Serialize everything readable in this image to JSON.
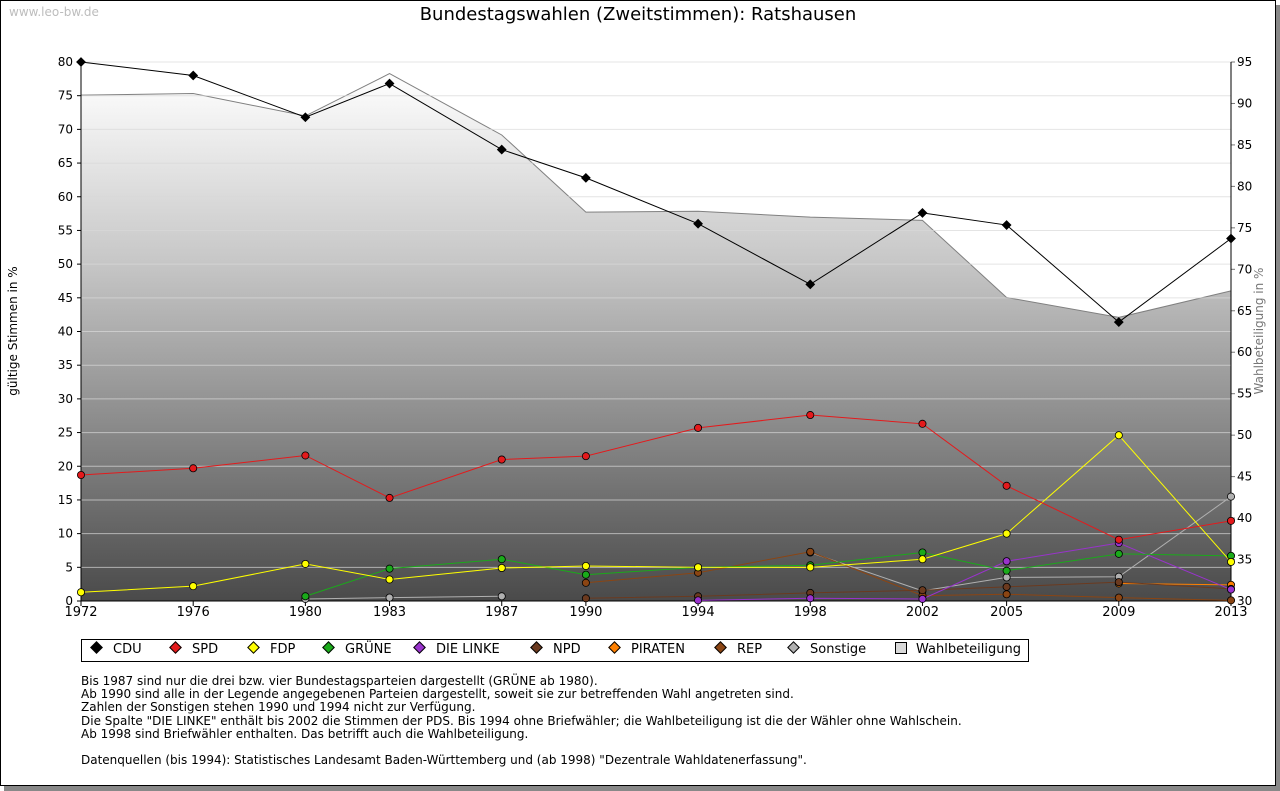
{
  "watermark": "www.leo-bw.de",
  "title": "Bundestagswahlen (Zweitstimmen): Ratshausen",
  "chart_data": {
    "type": "line",
    "title": "Bundestagswahlen (Zweitstimmen): Ratshausen",
    "ylabel": "gültige Stimmen in %",
    "y2label": "Wahlbeteiligung in %",
    "ylim": [
      0,
      80
    ],
    "y2lim": [
      30,
      95
    ],
    "yticks": [
      "0",
      "5",
      "10",
      "15",
      "20",
      "25",
      "30",
      "35",
      "40",
      "45",
      "50",
      "55",
      "60",
      "65",
      "70",
      "75",
      "80"
    ],
    "y2ticks": [
      "30",
      "35",
      "40",
      "45",
      "50",
      "55",
      "60",
      "65",
      "70",
      "75",
      "80",
      "85",
      "90",
      "95"
    ],
    "x": [
      "1972",
      "1976",
      "1980",
      "1983",
      "1987",
      "1990",
      "1994",
      "1998",
      "2002",
      "2005",
      "2009",
      "2013"
    ],
    "grid": true,
    "series": [
      {
        "name": "CDU",
        "color": "#000000",
        "values": [
          80.0,
          78.0,
          71.8,
          76.8,
          67.0,
          62.8,
          56.0,
          47.0,
          57.6,
          55.8,
          41.4,
          53.8
        ]
      },
      {
        "name": "SPD",
        "color": "#e41a1c",
        "values": [
          18.7,
          19.7,
          21.6,
          15.3,
          21.0,
          21.5,
          25.7,
          27.6,
          26.3,
          17.1,
          9.1,
          11.9
        ]
      },
      {
        "name": "FDP",
        "color": "#ffff00",
        "values": [
          1.3,
          2.2,
          5.5,
          3.2,
          4.9,
          5.2,
          5.0,
          5.0,
          6.2,
          10.0,
          24.6,
          5.8
        ]
      },
      {
        "name": "GRÜNE",
        "color": "#1aaa1a",
        "values": [
          null,
          null,
          0.7,
          4.8,
          6.2,
          3.9,
          5.0,
          5.3,
          7.2,
          4.5,
          7.0,
          6.7
        ]
      },
      {
        "name": "DIE LINKE",
        "color": "#9933cc",
        "values": [
          null,
          null,
          null,
          null,
          null,
          null,
          0.1,
          0.4,
          0.3,
          5.9,
          8.6,
          1.7
        ]
      },
      {
        "name": "NPD",
        "color": "#6b3a1f",
        "values": [
          null,
          null,
          null,
          null,
          null,
          0.4,
          0.7,
          1.2,
          1.6,
          2.1,
          2.8,
          1.8
        ]
      },
      {
        "name": "PIRATEN",
        "color": "#ff8000",
        "values": [
          null,
          null,
          null,
          null,
          null,
          null,
          null,
          null,
          null,
          null,
          2.6,
          2.4
        ]
      },
      {
        "name": "REP",
        "color": "#8b4513",
        "values": [
          null,
          null,
          null,
          null,
          null,
          2.7,
          4.2,
          7.3,
          0.8,
          1.0,
          0.5,
          0.1
        ]
      },
      {
        "name": "Sonstige",
        "color": "#b0b0b0",
        "values": [
          null,
          null,
          0.3,
          0.5,
          0.7,
          null,
          null,
          7.2,
          1.5,
          3.5,
          3.6,
          15.5
        ]
      }
    ],
    "turnout": {
      "name": "Wahlbeteiligung",
      "axis": "right",
      "values": [
        91.0,
        91.2,
        88.5,
        93.6,
        86.2,
        76.9,
        77.0,
        76.3,
        75.9,
        66.6,
        64.2,
        67.4
      ]
    },
    "legend_position": "bottom"
  },
  "notes": [
    "Bis 1987 sind nur die drei bzw. vier Bundestagsparteien dargestellt (GRÜNE ab 1980).",
    "Ab 1990 sind alle in der Legende angegebenen Parteien dargestellt, soweit sie zur betreffenden Wahl angetreten sind.",
    "Zahlen der Sonstigen stehen 1990 und 1994 nicht zur Verfügung.",
    "Die Spalte \"DIE LINKE\" enthält bis 2002 die Stimmen der PDS. Bis 1994 ohne Briefwähler; die Wahlbeteiligung ist die der Wähler ohne Wahlschein.",
    "Ab 1998 sind Briefwähler enthalten. Das betrifft auch die Wahlbeteiligung."
  ],
  "source": "Datenquellen (bis 1994): Statistisches Landesamt Baden-Württemberg und (ab 1998) \"Dezentrale Wahldatenerfassung\"."
}
